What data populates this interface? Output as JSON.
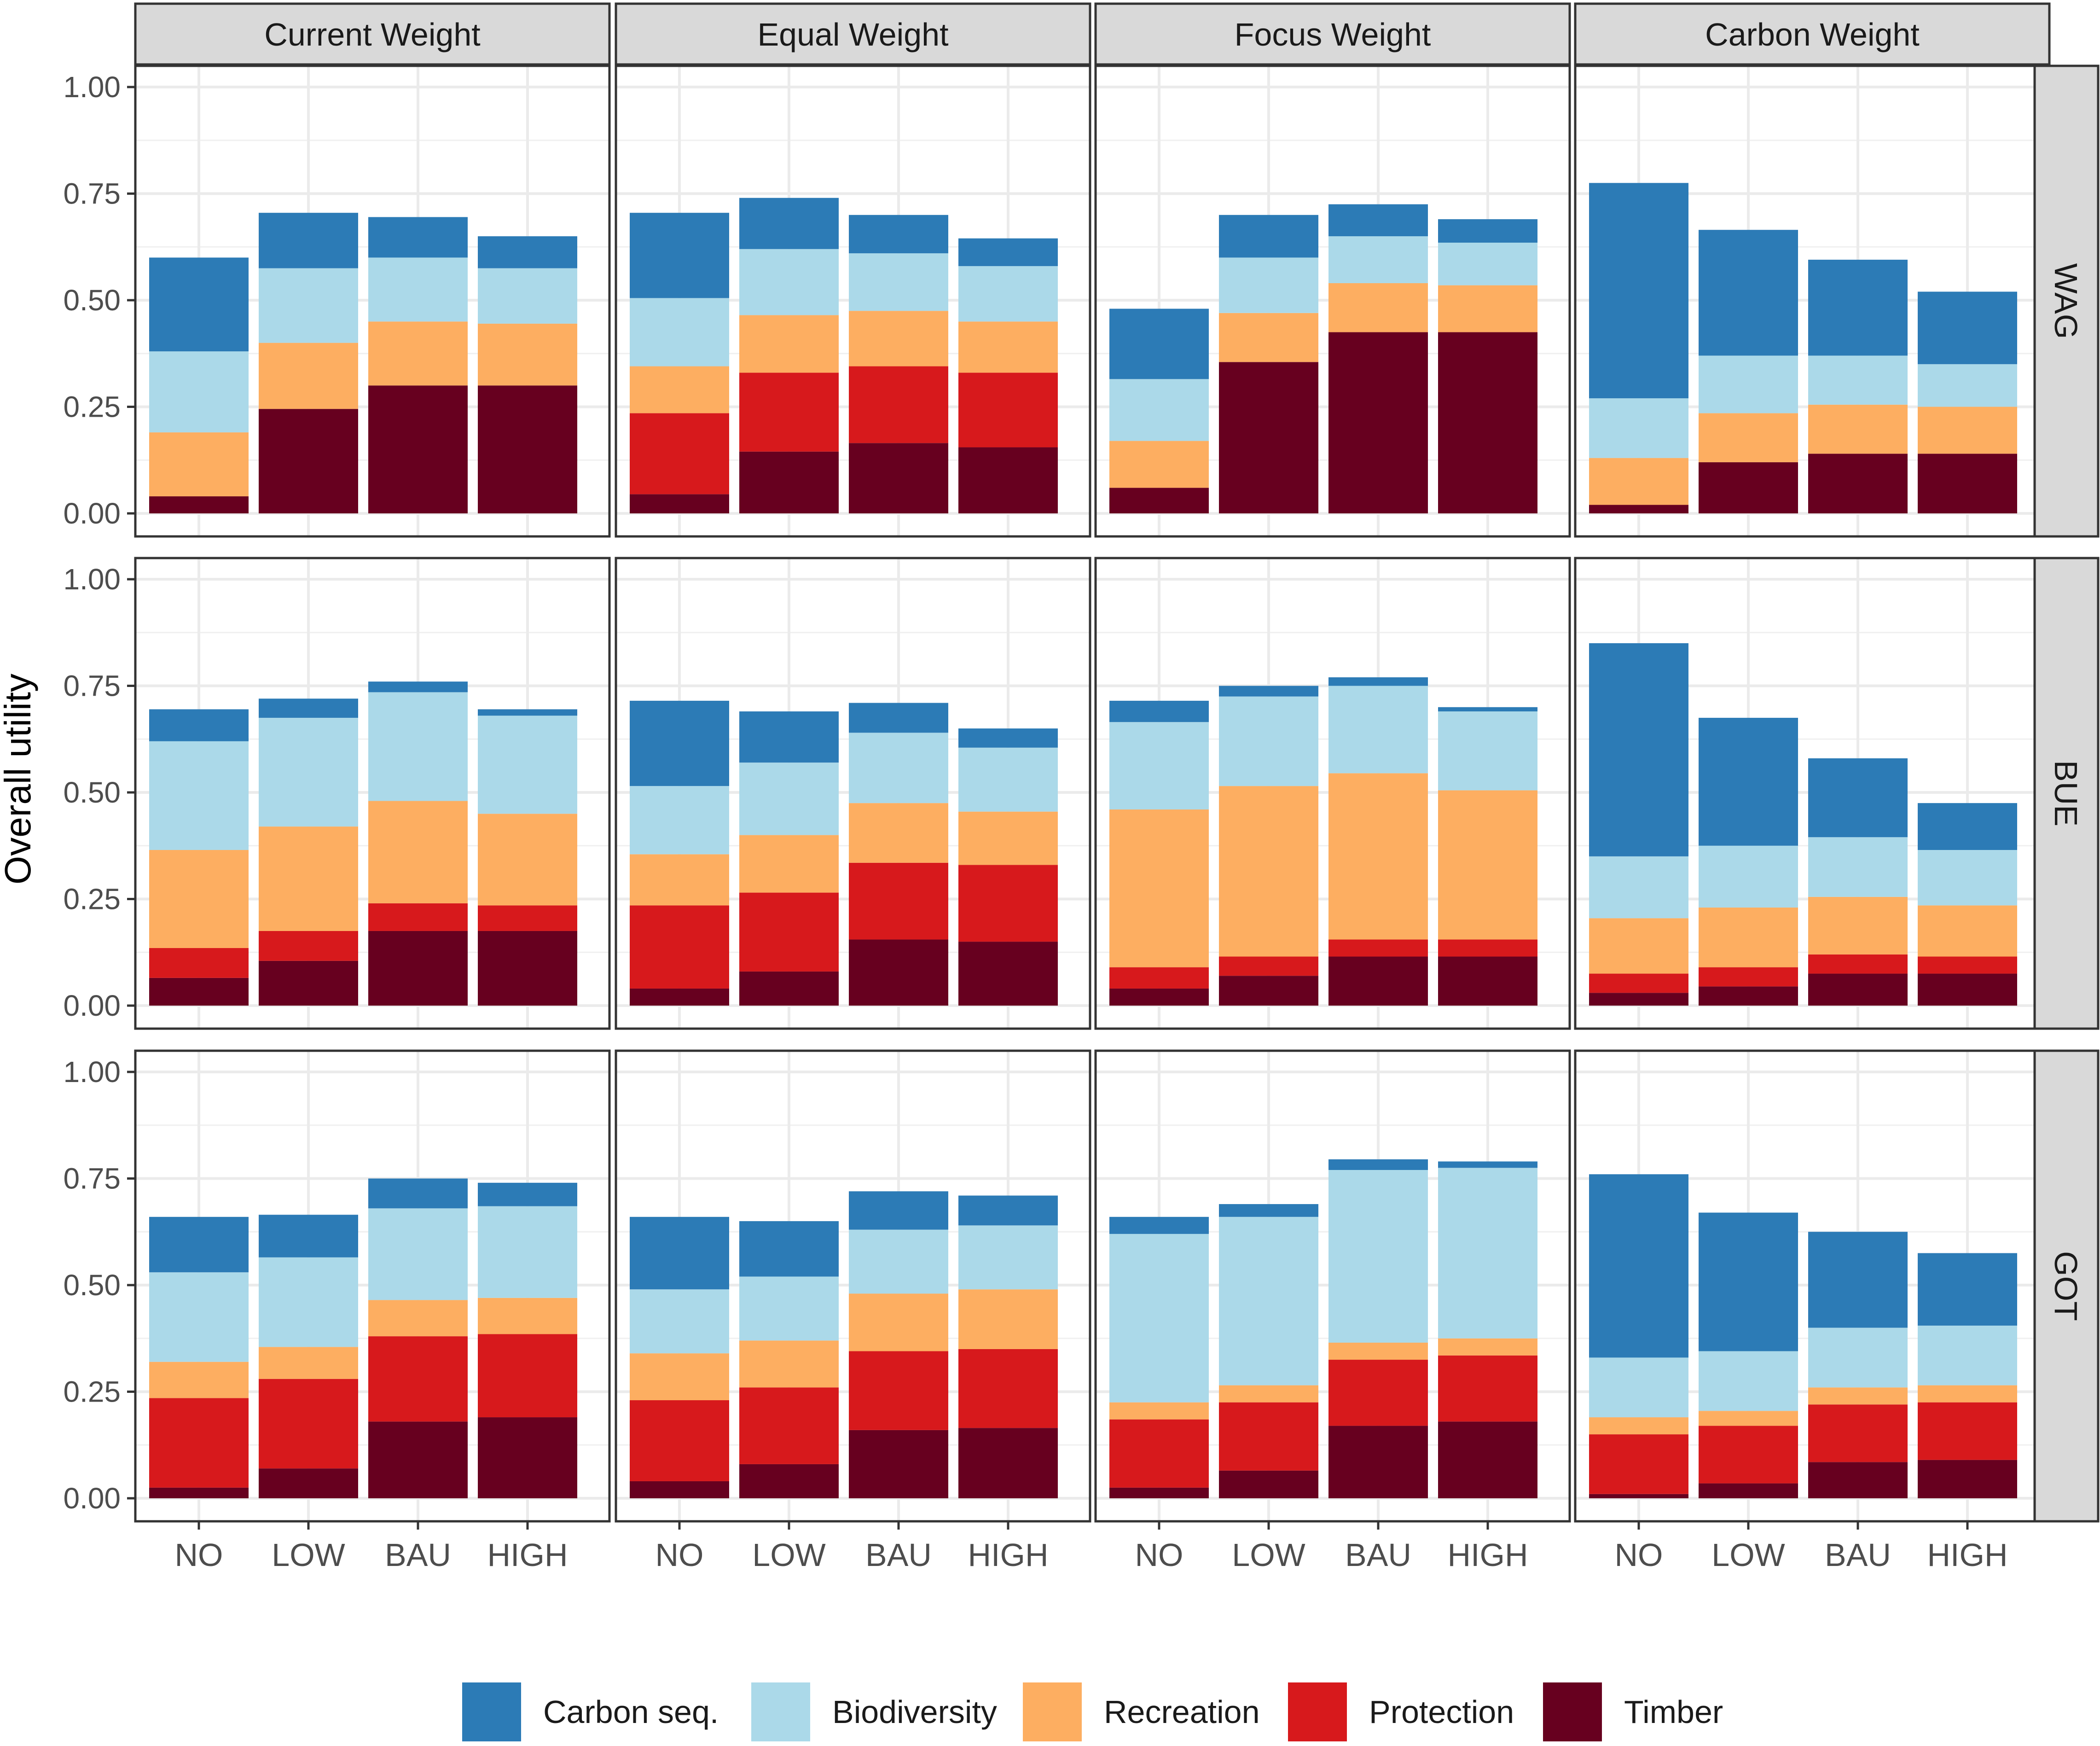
{
  "chart_data": {
    "type": "bar",
    "stacked": true,
    "ylabel": "Overall utility",
    "xlabel": "",
    "ylim": [
      0,
      1.0
    ],
    "yticks": [
      0.0,
      0.25,
      0.5,
      0.75,
      1.0
    ],
    "ytick_labels": [
      "0.00",
      "0.25",
      "0.50",
      "0.75",
      "1.00"
    ],
    "categories": [
      "NO",
      "LOW",
      "BAU",
      "HIGH"
    ],
    "columns": [
      "Current Weight",
      "Equal Weight",
      "Focus Weight",
      "Carbon Weight"
    ],
    "rows": [
      "WAG",
      "BUE",
      "GOT"
    ],
    "grid": true,
    "legend_position": "bottom",
    "series": [
      {
        "name": "Timber",
        "color": "#67001f"
      },
      {
        "name": "Protection",
        "color": "#d7191c"
      },
      {
        "name": "Recreation",
        "color": "#fdae61"
      },
      {
        "name": "Biodiversity",
        "color": "#abd9e9"
      },
      {
        "name": "Carbon seq.",
        "color": "#2c7bb6"
      }
    ],
    "legend_order": [
      "Carbon seq.",
      "Biodiversity",
      "Recreation",
      "Protection",
      "Timber"
    ],
    "panels": [
      {
        "row": "WAG",
        "column": "Current Weight",
        "stacks": [
          {
            "Timber": 0.04,
            "Protection": 0.0,
            "Recreation": 0.15,
            "Biodiversity": 0.19,
            "Carbon seq.": 0.22
          },
          {
            "Timber": 0.245,
            "Protection": 0.0,
            "Recreation": 0.155,
            "Biodiversity": 0.175,
            "Carbon seq.": 0.13
          },
          {
            "Timber": 0.3,
            "Protection": 0.0,
            "Recreation": 0.15,
            "Biodiversity": 0.15,
            "Carbon seq.": 0.095
          },
          {
            "Timber": 0.3,
            "Protection": 0.0,
            "Recreation": 0.145,
            "Biodiversity": 0.13,
            "Carbon seq.": 0.075
          }
        ]
      },
      {
        "row": "WAG",
        "column": "Equal Weight",
        "stacks": [
          {
            "Timber": 0.045,
            "Protection": 0.19,
            "Recreation": 0.11,
            "Biodiversity": 0.16,
            "Carbon seq.": 0.2
          },
          {
            "Timber": 0.145,
            "Protection": 0.185,
            "Recreation": 0.135,
            "Biodiversity": 0.155,
            "Carbon seq.": 0.12
          },
          {
            "Timber": 0.165,
            "Protection": 0.18,
            "Recreation": 0.13,
            "Biodiversity": 0.135,
            "Carbon seq.": 0.09
          },
          {
            "Timber": 0.155,
            "Protection": 0.175,
            "Recreation": 0.12,
            "Biodiversity": 0.13,
            "Carbon seq.": 0.065
          }
        ]
      },
      {
        "row": "WAG",
        "column": "Focus Weight",
        "stacks": [
          {
            "Timber": 0.06,
            "Protection": 0.0,
            "Recreation": 0.11,
            "Biodiversity": 0.145,
            "Carbon seq.": 0.165
          },
          {
            "Timber": 0.355,
            "Protection": 0.0,
            "Recreation": 0.115,
            "Biodiversity": 0.13,
            "Carbon seq.": 0.1
          },
          {
            "Timber": 0.425,
            "Protection": 0.0,
            "Recreation": 0.115,
            "Biodiversity": 0.11,
            "Carbon seq.": 0.075
          },
          {
            "Timber": 0.425,
            "Protection": 0.0,
            "Recreation": 0.11,
            "Biodiversity": 0.1,
            "Carbon seq.": 0.055
          }
        ]
      },
      {
        "row": "WAG",
        "column": "Carbon Weight",
        "stacks": [
          {
            "Timber": 0.02,
            "Protection": 0.0,
            "Recreation": 0.11,
            "Biodiversity": 0.14,
            "Carbon seq.": 0.505
          },
          {
            "Timber": 0.12,
            "Protection": 0.0,
            "Recreation": 0.115,
            "Biodiversity": 0.135,
            "Carbon seq.": 0.295
          },
          {
            "Timber": 0.14,
            "Protection": 0.0,
            "Recreation": 0.115,
            "Biodiversity": 0.115,
            "Carbon seq.": 0.225
          },
          {
            "Timber": 0.14,
            "Protection": 0.0,
            "Recreation": 0.11,
            "Biodiversity": 0.1,
            "Carbon seq.": 0.17
          }
        ]
      },
      {
        "row": "BUE",
        "column": "Current Weight",
        "stacks": [
          {
            "Timber": 0.065,
            "Protection": 0.07,
            "Recreation": 0.23,
            "Biodiversity": 0.255,
            "Carbon seq.": 0.075
          },
          {
            "Timber": 0.105,
            "Protection": 0.07,
            "Recreation": 0.245,
            "Biodiversity": 0.255,
            "Carbon seq.": 0.045
          },
          {
            "Timber": 0.175,
            "Protection": 0.065,
            "Recreation": 0.24,
            "Biodiversity": 0.255,
            "Carbon seq.": 0.025
          },
          {
            "Timber": 0.175,
            "Protection": 0.06,
            "Recreation": 0.215,
            "Biodiversity": 0.23,
            "Carbon seq.": 0.015
          }
        ]
      },
      {
        "row": "BUE",
        "column": "Equal Weight",
        "stacks": [
          {
            "Timber": 0.04,
            "Protection": 0.195,
            "Recreation": 0.12,
            "Biodiversity": 0.16,
            "Carbon seq.": 0.2
          },
          {
            "Timber": 0.08,
            "Protection": 0.185,
            "Recreation": 0.135,
            "Biodiversity": 0.17,
            "Carbon seq.": 0.12
          },
          {
            "Timber": 0.155,
            "Protection": 0.18,
            "Recreation": 0.14,
            "Biodiversity": 0.165,
            "Carbon seq.": 0.07
          },
          {
            "Timber": 0.15,
            "Protection": 0.18,
            "Recreation": 0.125,
            "Biodiversity": 0.15,
            "Carbon seq.": 0.045
          }
        ]
      },
      {
        "row": "BUE",
        "column": "Focus Weight",
        "stacks": [
          {
            "Timber": 0.04,
            "Protection": 0.05,
            "Recreation": 0.37,
            "Biodiversity": 0.205,
            "Carbon seq.": 0.05
          },
          {
            "Timber": 0.07,
            "Protection": 0.045,
            "Recreation": 0.4,
            "Biodiversity": 0.21,
            "Carbon seq.": 0.025
          },
          {
            "Timber": 0.115,
            "Protection": 0.04,
            "Recreation": 0.39,
            "Biodiversity": 0.205,
            "Carbon seq.": 0.02
          },
          {
            "Timber": 0.115,
            "Protection": 0.04,
            "Recreation": 0.35,
            "Biodiversity": 0.185,
            "Carbon seq.": 0.01
          }
        ]
      },
      {
        "row": "BUE",
        "column": "Carbon Weight",
        "stacks": [
          {
            "Timber": 0.03,
            "Protection": 0.045,
            "Recreation": 0.13,
            "Biodiversity": 0.145,
            "Carbon seq.": 0.5
          },
          {
            "Timber": 0.045,
            "Protection": 0.045,
            "Recreation": 0.14,
            "Biodiversity": 0.145,
            "Carbon seq.": 0.3
          },
          {
            "Timber": 0.075,
            "Protection": 0.045,
            "Recreation": 0.135,
            "Biodiversity": 0.14,
            "Carbon seq.": 0.185
          },
          {
            "Timber": 0.075,
            "Protection": 0.04,
            "Recreation": 0.12,
            "Biodiversity": 0.13,
            "Carbon seq.": 0.11
          }
        ]
      },
      {
        "row": "GOT",
        "column": "Current Weight",
        "stacks": [
          {
            "Timber": 0.025,
            "Protection": 0.21,
            "Recreation": 0.085,
            "Biodiversity": 0.21,
            "Carbon seq.": 0.13
          },
          {
            "Timber": 0.07,
            "Protection": 0.21,
            "Recreation": 0.075,
            "Biodiversity": 0.21,
            "Carbon seq.": 0.1
          },
          {
            "Timber": 0.18,
            "Protection": 0.2,
            "Recreation": 0.085,
            "Biodiversity": 0.215,
            "Carbon seq.": 0.07
          },
          {
            "Timber": 0.19,
            "Protection": 0.195,
            "Recreation": 0.085,
            "Biodiversity": 0.215,
            "Carbon seq.": 0.055
          }
        ]
      },
      {
        "row": "GOT",
        "column": "Equal Weight",
        "stacks": [
          {
            "Timber": 0.04,
            "Protection": 0.19,
            "Recreation": 0.11,
            "Biodiversity": 0.15,
            "Carbon seq.": 0.17
          },
          {
            "Timber": 0.08,
            "Protection": 0.18,
            "Recreation": 0.11,
            "Biodiversity": 0.15,
            "Carbon seq.": 0.13
          },
          {
            "Timber": 0.16,
            "Protection": 0.185,
            "Recreation": 0.135,
            "Biodiversity": 0.15,
            "Carbon seq.": 0.09
          },
          {
            "Timber": 0.165,
            "Protection": 0.185,
            "Recreation": 0.14,
            "Biodiversity": 0.15,
            "Carbon seq.": 0.07
          }
        ]
      },
      {
        "row": "GOT",
        "column": "Focus Weight",
        "stacks": [
          {
            "Timber": 0.025,
            "Protection": 0.16,
            "Recreation": 0.04,
            "Biodiversity": 0.395,
            "Carbon seq.": 0.04
          },
          {
            "Timber": 0.065,
            "Protection": 0.16,
            "Recreation": 0.04,
            "Biodiversity": 0.395,
            "Carbon seq.": 0.03
          },
          {
            "Timber": 0.17,
            "Protection": 0.155,
            "Recreation": 0.04,
            "Biodiversity": 0.405,
            "Carbon seq.": 0.025
          },
          {
            "Timber": 0.18,
            "Protection": 0.155,
            "Recreation": 0.04,
            "Biodiversity": 0.4,
            "Carbon seq.": 0.015
          }
        ]
      },
      {
        "row": "GOT",
        "column": "Carbon Weight",
        "stacks": [
          {
            "Timber": 0.01,
            "Protection": 0.14,
            "Recreation": 0.04,
            "Biodiversity": 0.14,
            "Carbon seq.": 0.43
          },
          {
            "Timber": 0.035,
            "Protection": 0.135,
            "Recreation": 0.035,
            "Biodiversity": 0.14,
            "Carbon seq.": 0.325
          },
          {
            "Timber": 0.085,
            "Protection": 0.135,
            "Recreation": 0.04,
            "Biodiversity": 0.14,
            "Carbon seq.": 0.225
          },
          {
            "Timber": 0.09,
            "Protection": 0.135,
            "Recreation": 0.04,
            "Biodiversity": 0.14,
            "Carbon seq.": 0.17
          }
        ]
      }
    ]
  }
}
